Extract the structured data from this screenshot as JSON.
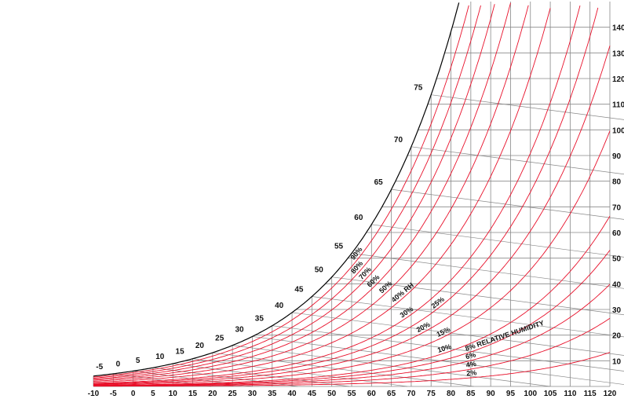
{
  "chart_data": {
    "type": "line",
    "title": "",
    "xlabel": "",
    "ylabel": "",
    "xlim": [
      -10,
      120
    ],
    "ylim": [
      0,
      150
    ],
    "x_ticks": [
      "-10",
      "-5",
      "0",
      "5",
      "10",
      "15",
      "20",
      "25",
      "30",
      "35",
      "40",
      "45",
      "50",
      "55",
      "60",
      "65",
      "70",
      "75",
      "80",
      "85",
      "90",
      "95",
      "100",
      "105",
      "110",
      "115",
      "120"
    ],
    "y_ticks": [
      "10",
      "20",
      "30",
      "40",
      "50",
      "60",
      "70",
      "80",
      "90",
      "100",
      "110",
      "120",
      "130",
      "140"
    ],
    "grid": true,
    "colors": {
      "curves": "#e8102a",
      "grid": "#888888",
      "saturation": "#000000"
    },
    "wet_bulb_labels": [
      {
        "label": "-5",
        "t": -5
      },
      {
        "label": "0",
        "t": 0
      },
      {
        "label": "5",
        "t": 5
      },
      {
        "label": "10",
        "t": 10
      },
      {
        "label": "15",
        "t": 15
      },
      {
        "label": "20",
        "t": 20
      },
      {
        "label": "25",
        "t": 25
      },
      {
        "label": "30",
        "t": 30
      },
      {
        "label": "35",
        "t": 35
      },
      {
        "label": "40",
        "t": 40
      },
      {
        "label": "45",
        "t": 45
      },
      {
        "label": "50",
        "t": 50
      },
      {
        "label": "55",
        "t": 55
      },
      {
        "label": "60",
        "t": 60
      },
      {
        "label": "65",
        "t": 65
      },
      {
        "label": "70",
        "t": 70
      },
      {
        "label": "75",
        "t": 75
      }
    ],
    "rh_curves": [
      100,
      90,
      80,
      70,
      60,
      50,
      40,
      30,
      25,
      20,
      15,
      10,
      8,
      6,
      4,
      2
    ],
    "rh_labels": [
      {
        "text": "90%",
        "rh": 90
      },
      {
        "text": "80%",
        "rh": 80
      },
      {
        "text": "70%",
        "rh": 70
      },
      {
        "text": "60%",
        "rh": 60
      },
      {
        "text": "50%",
        "rh": 50
      },
      {
        "text": "40% RH",
        "rh": 40
      },
      {
        "text": "30%",
        "rh": 30
      },
      {
        "text": "25%",
        "rh": 25
      },
      {
        "text": "20%",
        "rh": 20
      },
      {
        "text": "15%",
        "rh": 15
      },
      {
        "text": "10%",
        "rh": 10
      },
      {
        "text": "8% RELATIVE HUMIDITY",
        "rh": 8
      },
      {
        "text": "6%",
        "rh": 6
      },
      {
        "text": "4%",
        "rh": 4
      },
      {
        "text": "2%",
        "rh": 2
      }
    ]
  }
}
